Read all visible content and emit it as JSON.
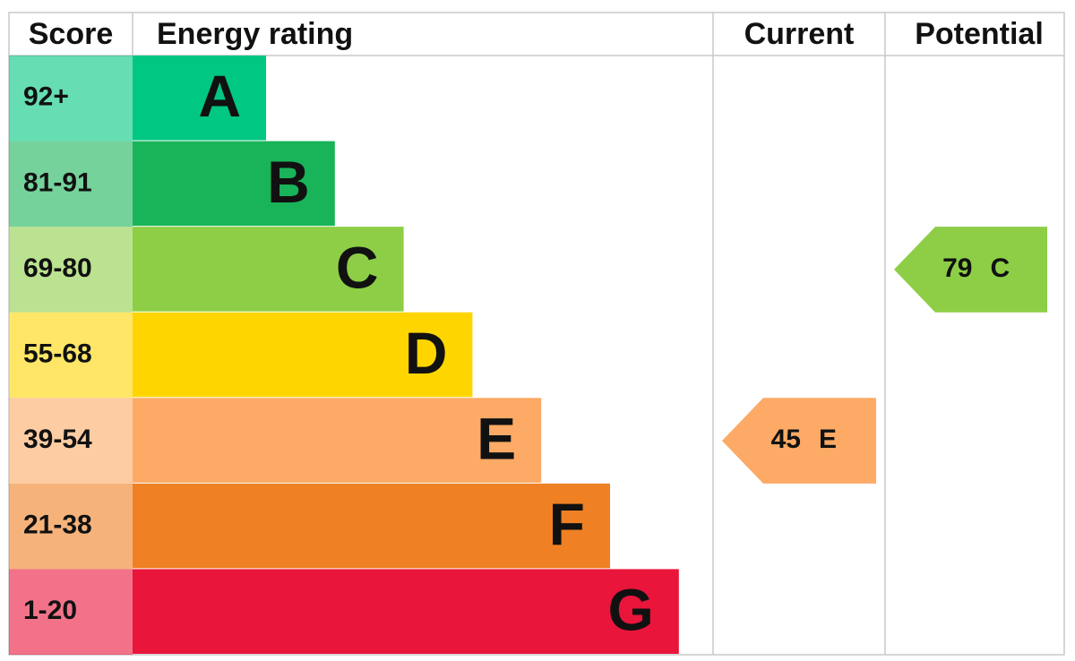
{
  "headers": [
    "Score",
    "Energy rating",
    "Current",
    "Potential"
  ],
  "bands": [
    {
      "score": "92+",
      "rating": "A",
      "color": "#00c781"
    },
    {
      "score": "81-91",
      "rating": "B",
      "color": "#19b459"
    },
    {
      "score": "69-80",
      "rating": "C",
      "color": "#8dce46"
    },
    {
      "score": "55-68",
      "rating": "D",
      "color": "#ffd500"
    },
    {
      "score": "39-54",
      "rating": "E",
      "color": "#fcaa65"
    },
    {
      "score": "21-38",
      "rating": "F",
      "color": "#ef8023"
    },
    {
      "score": "1-20",
      "rating": "G",
      "color": "#e9153b"
    }
  ],
  "current": {
    "value": 45,
    "rating": "E"
  },
  "potential": {
    "value": 79,
    "rating": "C"
  }
}
